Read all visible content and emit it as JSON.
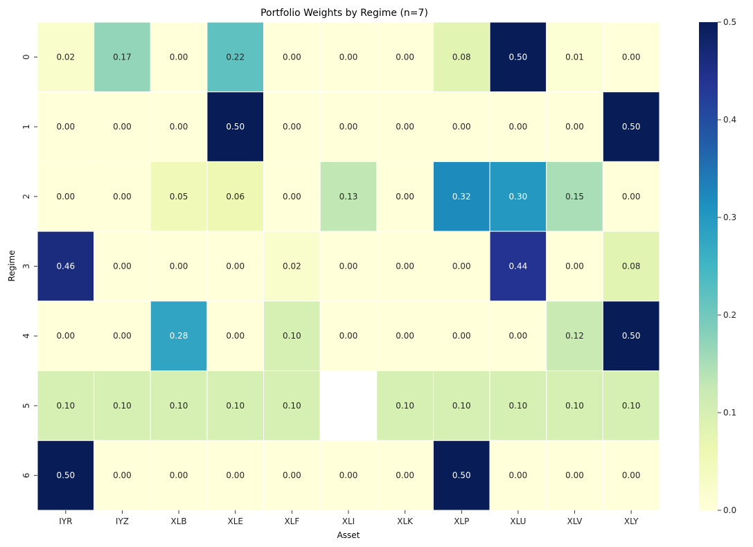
{
  "chart_data": {
    "type": "heatmap",
    "title": "Portfolio Weights by Regime (n=7)",
    "xlabel": "Asset",
    "ylabel": "Regime",
    "x_categories": [
      "IYR",
      "IYZ",
      "XLB",
      "XLE",
      "XLF",
      "XLI",
      "XLK",
      "XLP",
      "XLU",
      "XLV",
      "XLY"
    ],
    "y_categories": [
      "0",
      "1",
      "2",
      "3",
      "4",
      "5",
      "6"
    ],
    "values": [
      [
        0.02,
        0.17,
        0.0,
        0.22,
        0.0,
        0.0,
        0.0,
        0.08,
        0.5,
        0.01,
        0.0
      ],
      [
        0.0,
        0.0,
        0.0,
        0.5,
        0.0,
        0.0,
        0.0,
        0.0,
        0.0,
        0.0,
        0.5
      ],
      [
        0.0,
        0.0,
        0.05,
        0.06,
        0.0,
        0.13,
        0.0,
        0.32,
        0.3,
        0.15,
        0.0
      ],
      [
        0.46,
        0.0,
        0.0,
        0.0,
        0.02,
        0.0,
        0.0,
        0.0,
        0.44,
        0.0,
        0.08
      ],
      [
        0.0,
        0.0,
        0.28,
        0.0,
        0.1,
        0.0,
        0.0,
        0.0,
        0.0,
        0.12,
        0.5
      ],
      [
        0.1,
        0.1,
        0.1,
        0.1,
        0.1,
        null,
        0.1,
        0.1,
        0.1,
        0.1,
        0.1
      ],
      [
        0.5,
        0.0,
        0.0,
        0.0,
        0.0,
        0.0,
        0.0,
        0.5,
        0.0,
        0.0,
        0.0
      ]
    ],
    "value_format": "0.00",
    "colormap": "YlGnBu",
    "vmin": 0.0,
    "vmax": 0.5,
    "colorbar_ticks": [
      "0.0",
      "0.1",
      "0.2",
      "0.3",
      "0.4",
      "0.5"
    ],
    "colors": {
      "YlGnBu": [
        "#ffffd9",
        "#edf8b1",
        "#c7e9b4",
        "#7fcdbb",
        "#41b6c4",
        "#1d91c0",
        "#225ea8",
        "#253494",
        "#081d58"
      ],
      "missing_cell": "#ffffff",
      "grid_line": "#ffffff",
      "text_dark": "#262626",
      "text_light": "#ffffff"
    }
  }
}
